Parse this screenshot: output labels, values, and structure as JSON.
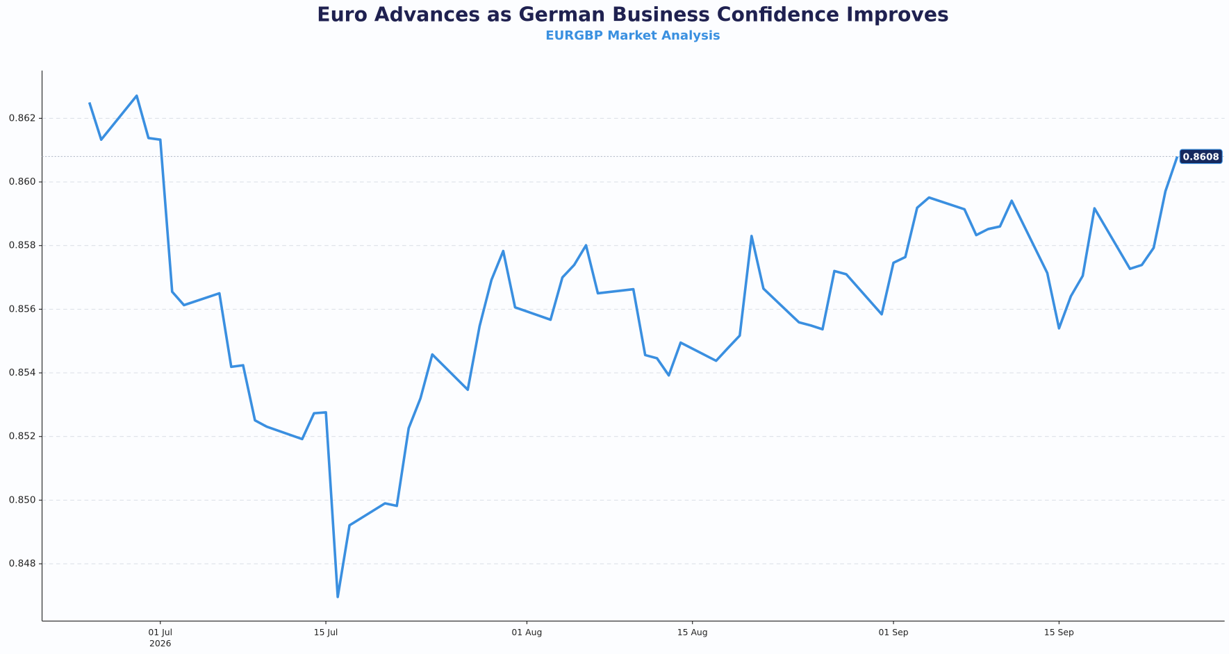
{
  "chart_data": {
    "type": "line",
    "title": "Euro Advances as German Business Confidence Improves",
    "subtitle": "EURGBP Market Analysis",
    "color": "#3a8fe0",
    "grid": true,
    "x": [
      "2026-06-25",
      "2026-06-26",
      "2026-06-29",
      "2026-06-30",
      "2026-07-01",
      "2026-07-02",
      "2026-07-03",
      "2026-07-06",
      "2026-07-07",
      "2026-07-08",
      "2026-07-09",
      "2026-07-10",
      "2026-07-13",
      "2026-07-14",
      "2026-07-15",
      "2026-07-16",
      "2026-07-17",
      "2026-07-20",
      "2026-07-21",
      "2026-07-22",
      "2026-07-23",
      "2026-07-24",
      "2026-07-27",
      "2026-07-28",
      "2026-07-29",
      "2026-07-30",
      "2026-07-31",
      "2026-08-03",
      "2026-08-04",
      "2026-08-05",
      "2026-08-06",
      "2026-08-07",
      "2026-08-10",
      "2026-08-11",
      "2026-08-12",
      "2026-08-13",
      "2026-08-14",
      "2026-08-17",
      "2026-08-18",
      "2026-08-19",
      "2026-08-20",
      "2026-08-21",
      "2026-08-24",
      "2026-08-25",
      "2026-08-26",
      "2026-08-27",
      "2026-08-28",
      "2026-08-31",
      "2026-09-01",
      "2026-09-02",
      "2026-09-03",
      "2026-09-04",
      "2026-09-07",
      "2026-09-08",
      "2026-09-09",
      "2026-09-10",
      "2026-09-11",
      "2026-09-14",
      "2026-09-15",
      "2026-09-16",
      "2026-09-17",
      "2026-09-18",
      "2026-09-21",
      "2026-09-22",
      "2026-09-23",
      "2026-09-24",
      "2026-09-25"
    ],
    "values": [
      0.8625,
      0.86133,
      0.86271,
      0.86138,
      0.86133,
      0.85655,
      0.85613,
      0.8565,
      0.85419,
      0.85424,
      0.85251,
      0.85231,
      0.85192,
      0.85273,
      0.85276,
      0.84696,
      0.84921,
      0.8499,
      0.84982,
      0.85226,
      0.8532,
      0.85458,
      0.85347,
      0.85547,
      0.85692,
      0.85783,
      0.85606,
      0.85567,
      0.857,
      0.85739,
      0.85801,
      0.8565,
      0.85663,
      0.85456,
      0.85446,
      0.85392,
      0.85495,
      0.85438,
      0.85478,
      0.85517,
      0.8583,
      0.85665,
      0.85559,
      0.85549,
      0.85537,
      0.8572,
      0.8571,
      0.85584,
      0.85746,
      0.85764,
      0.85919,
      0.85951,
      0.85914,
      0.85833,
      0.85852,
      0.8586,
      0.85941,
      0.85714,
      0.8554,
      0.85641,
      0.85705,
      0.85917,
      0.85727,
      0.85739,
      0.85793,
      0.85971,
      0.8608
    ],
    "xlim": [
      "2026-06-21",
      "2026-09-29"
    ],
    "xticks": [
      {
        "value": "2026-07-01",
        "label": "01 Jul",
        "sublabel": "2026"
      },
      {
        "value": "2026-07-15",
        "label": "15 Jul"
      },
      {
        "value": "2026-08-01",
        "label": "01 Aug"
      },
      {
        "value": "2026-08-15",
        "label": "15 Aug"
      },
      {
        "value": "2026-09-01",
        "label": "01 Sep"
      },
      {
        "value": "2026-09-15",
        "label": "15 Sep"
      }
    ],
    "ylim": [
      0.8462,
      0.8635
    ],
    "yticks": [
      0.848,
      {
        "value": 0.85,
        "label": "0.850"
      },
      0.852,
      0.854,
      0.856,
      0.858,
      {
        "value": 0.86,
        "label": "0.860"
      },
      0.862
    ]
  }
}
